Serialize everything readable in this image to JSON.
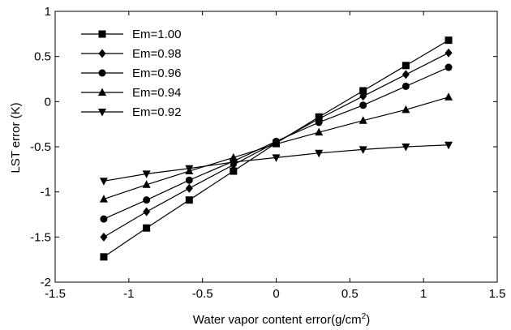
{
  "chart_data": {
    "type": "line",
    "xlabel": "Water vapor content error(g/cm",
    "xlabel_sup": "2",
    "xlabel_suffix": ")",
    "ylabel": "LST error (K)",
    "xlim": [
      -1.5,
      1.5
    ],
    "ylim": [
      -2,
      1
    ],
    "xticks": [
      -1.5,
      -1,
      -0.5,
      0,
      0.5,
      1,
      1.5
    ],
    "xtick_labels": [
      "-1.5",
      "-1",
      "-0.5",
      "0",
      "0.5",
      "1",
      "1.5"
    ],
    "yticks": [
      -2,
      -1.5,
      -1,
      -0.5,
      0,
      0.5,
      1
    ],
    "ytick_labels": [
      "-2",
      "-1.5",
      "-1",
      "-0.5",
      "0",
      "0.5",
      "1"
    ],
    "grid": false,
    "legend_position": "top-left",
    "x": [
      -1.17,
      -0.88,
      -0.59,
      -0.29,
      0,
      0.29,
      0.59,
      0.88,
      1.17
    ],
    "series": [
      {
        "name": "Em=1.00",
        "marker": "square",
        "values": [
          -1.72,
          -1.4,
          -1.09,
          -0.77,
          -0.46,
          -0.17,
          0.12,
          0.4,
          0.68
        ]
      },
      {
        "name": "Em=0.98",
        "marker": "diamond",
        "values": [
          -1.5,
          -1.22,
          -0.96,
          -0.7,
          -0.45,
          -0.19,
          0.06,
          0.3,
          0.54
        ]
      },
      {
        "name": "Em=0.96",
        "marker": "circle",
        "values": [
          -1.3,
          -1.09,
          -0.87,
          -0.66,
          -0.44,
          -0.23,
          -0.04,
          0.17,
          0.38
        ]
      },
      {
        "name": "Em=0.94",
        "marker": "triangle-up",
        "values": [
          -1.08,
          -0.92,
          -0.77,
          -0.62,
          -0.47,
          -0.34,
          -0.21,
          -0.09,
          0.05
        ]
      },
      {
        "name": "Em=0.92",
        "marker": "triangle-down",
        "values": [
          -0.88,
          -0.8,
          -0.74,
          -0.67,
          -0.62,
          -0.57,
          -0.53,
          -0.5,
          -0.48
        ]
      }
    ]
  }
}
